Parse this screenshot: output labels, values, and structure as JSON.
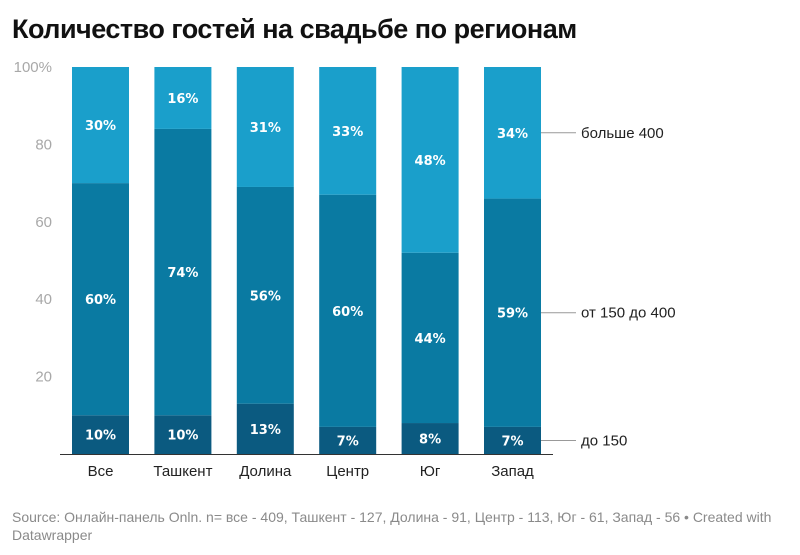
{
  "title": "Количество гостей на свадьбе по регионам",
  "footer": "Source: Онлайн-панель Onln. n= все - 409, Ташкент - 127, Долина - 91, Центр - 113, Юг - 61, Запад - 56 • Created with Datawrapper",
  "chart_data": {
    "type": "bar",
    "stacked": true,
    "title": "Количество гостей на свадьбе по регионам",
    "xlabel": "",
    "ylabel": "",
    "ylim": [
      0,
      100
    ],
    "yticks": [
      20,
      40,
      60,
      80,
      100
    ],
    "ytick_labels": [
      "20",
      "40",
      "60",
      "80",
      "100%"
    ],
    "grid": false,
    "legend": "right",
    "categories": [
      "Все",
      "Ташкент",
      "Долина",
      "Центр",
      "Юг",
      "Запад"
    ],
    "series": [
      {
        "name": "до 150",
        "color": "#0b5a80",
        "values": [
          10,
          10,
          13,
          7,
          8,
          7
        ],
        "labels": [
          "10%",
          "10%",
          "13%",
          "7%",
          "8%",
          "7%"
        ]
      },
      {
        "name": "от 150 до 400",
        "color": "#0a7aa2",
        "values": [
          60,
          74,
          56,
          60,
          44,
          59
        ],
        "labels": [
          "60%",
          "74%",
          "56%",
          "60%",
          "44%",
          "59%"
        ]
      },
      {
        "name": "больше 400",
        "color": "#1a9fcb",
        "values": [
          30,
          16,
          31,
          33,
          48,
          34
        ],
        "labels": [
          "30%",
          "16%",
          "31%",
          "33%",
          "48%",
          "34%"
        ]
      }
    ]
  }
}
